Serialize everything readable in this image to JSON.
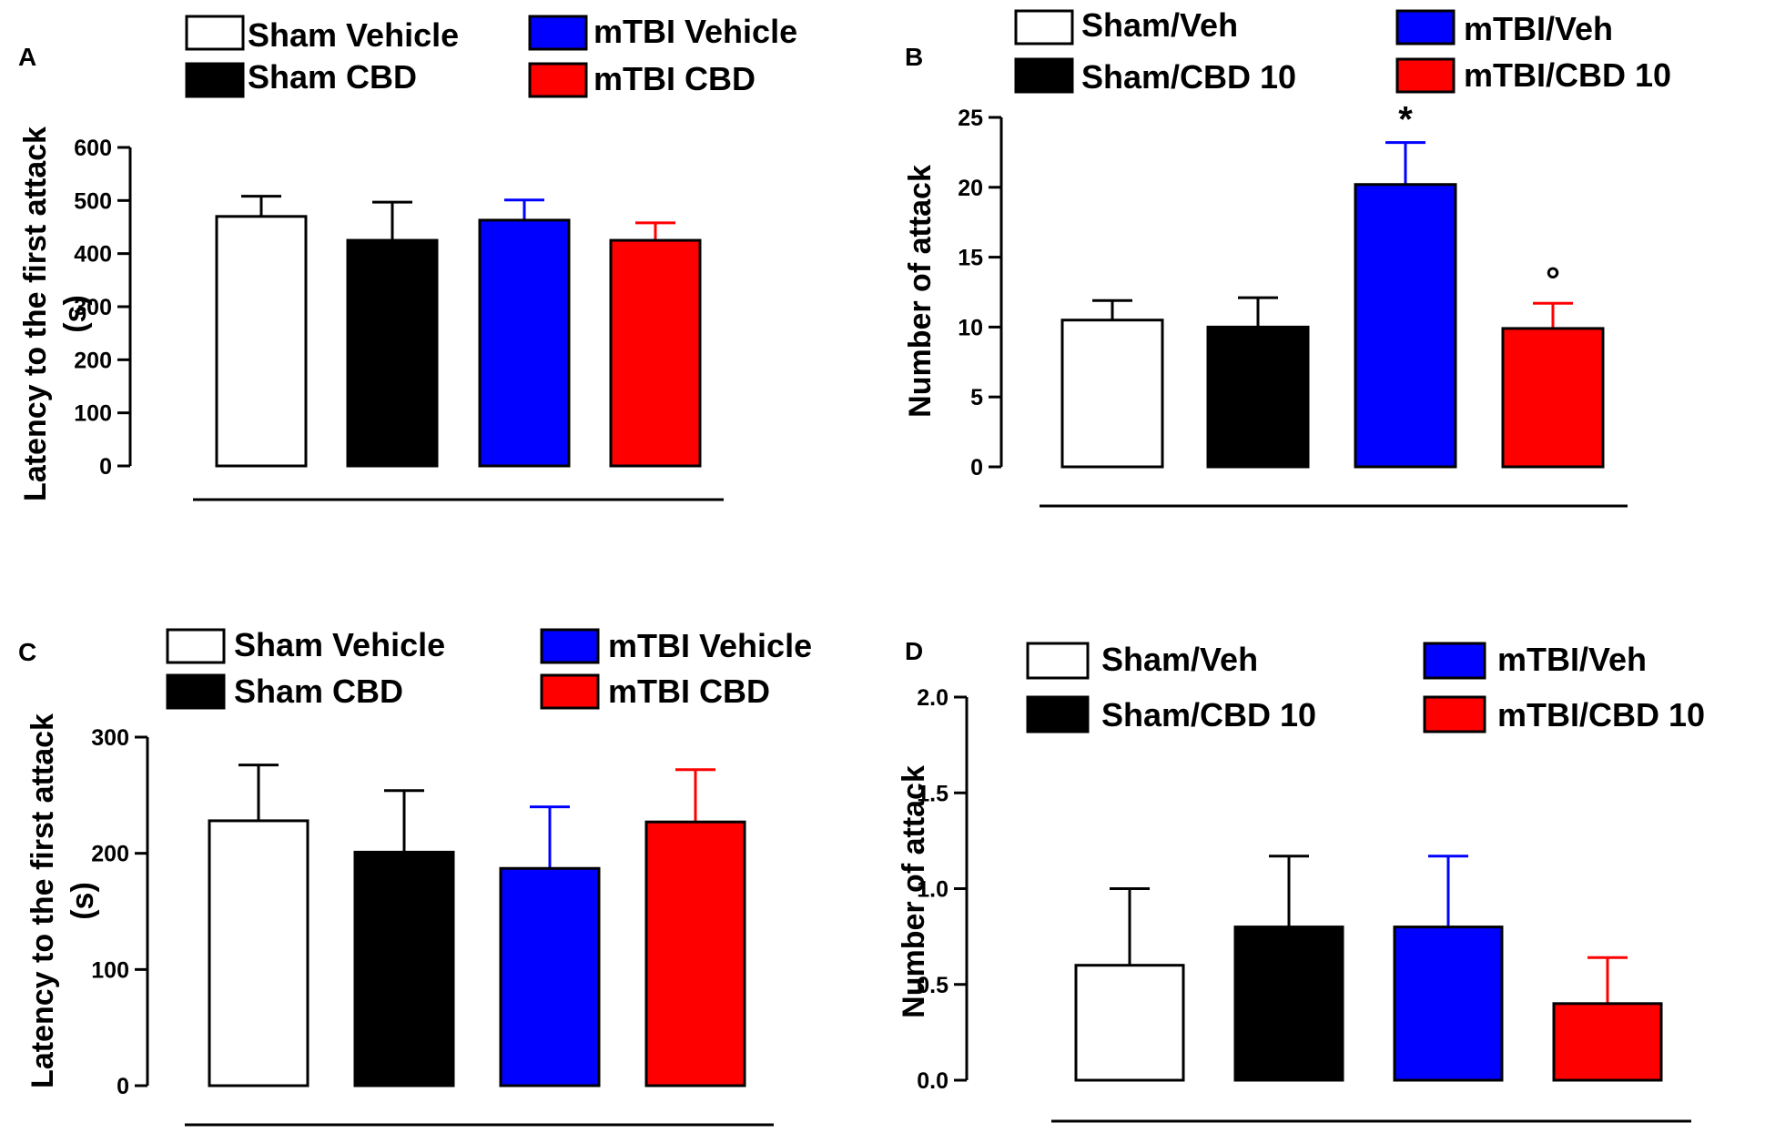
{
  "figure": {
    "groups": [
      {
        "name": "Sham Vehicle",
        "color": "#ffffff"
      },
      {
        "name": "Sham CBD",
        "color": "#000000"
      },
      {
        "name": "mTBI Vehicle",
        "color": "#0000ff"
      },
      {
        "name": "mTBI CBD",
        "color": "#ff0000"
      }
    ]
  },
  "chart_data": [
    {
      "panel": "A",
      "type": "bar",
      "ylabel": "Latency to the first attack (s)",
      "ylabel_lines": [
        "Latency to the first attack",
        "(s)"
      ],
      "ylim": [
        0,
        600
      ],
      "ticks": [
        0,
        100,
        200,
        300,
        400,
        500,
        600
      ],
      "tick_labels": [
        "0",
        "100",
        "200",
        "300",
        "400",
        "500",
        "600"
      ],
      "legend": [
        "Sham Vehicle",
        "Sham CBD",
        "mTBI Vehicle",
        "mTBI CBD"
      ],
      "colors": [
        "#ffffff",
        "#000000",
        "#0000ff",
        "#ff0000"
      ],
      "values": [
        470,
        425,
        463,
        425
      ],
      "errors": [
        38,
        72,
        38,
        33
      ],
      "annotations": [
        "",
        "",
        "",
        ""
      ]
    },
    {
      "panel": "B",
      "type": "bar",
      "ylabel": "Number of attack",
      "ylabel_lines": [
        "Number of attack"
      ],
      "ylim": [
        0,
        25
      ],
      "ticks": [
        0,
        5,
        10,
        15,
        20,
        25
      ],
      "tick_labels": [
        "0",
        "5",
        "10",
        "15",
        "20",
        "25"
      ],
      "legend": [
        "Sham/Veh",
        "Sham/CBD 10",
        "mTBI/Veh",
        "mTBI/CBD 10"
      ],
      "colors": [
        "#ffffff",
        "#000000",
        "#0000ff",
        "#ff0000"
      ],
      "values": [
        10.5,
        10.0,
        20.2,
        9.9
      ],
      "errors": [
        1.4,
        2.1,
        3.0,
        1.8
      ],
      "annotations": [
        "",
        "",
        "*",
        "°"
      ]
    },
    {
      "panel": "C",
      "type": "bar",
      "ylabel": "Latency to the first attack (s)",
      "ylabel_lines": [
        "Latency to the first attack",
        "(s)"
      ],
      "ylim": [
        0,
        300
      ],
      "ticks": [
        0,
        100,
        200,
        300
      ],
      "tick_labels": [
        "0",
        "100",
        "200",
        "300"
      ],
      "legend": [
        "Sham Vehicle",
        "Sham CBD",
        "mTBI Vehicle",
        "mTBI CBD"
      ],
      "colors": [
        "#ffffff",
        "#000000",
        "#0000ff",
        "#ff0000"
      ],
      "values": [
        228,
        201,
        187,
        227
      ],
      "errors": [
        48,
        53,
        53,
        45
      ],
      "annotations": [
        "",
        "",
        "",
        ""
      ]
    },
    {
      "panel": "D",
      "type": "bar",
      "ylabel": "Number of attack",
      "ylabel_lines": [
        "Number of attack"
      ],
      "ylim": [
        0,
        2.0
      ],
      "ticks": [
        0,
        0.5,
        1.0,
        1.5,
        2.0
      ],
      "tick_labels": [
        "0.0",
        "0.5",
        "1.0",
        "1.5",
        "2.0"
      ],
      "legend": [
        "Sham/Veh",
        "Sham/CBD 10",
        "mTBI/Veh",
        "mTBI/CBD 10"
      ],
      "colors": [
        "#ffffff",
        "#000000",
        "#0000ff",
        "#ff0000"
      ],
      "values": [
        0.6,
        0.8,
        0.8,
        0.4
      ],
      "errors": [
        0.4,
        0.37,
        0.37,
        0.24
      ],
      "annotations": [
        "",
        "",
        "",
        ""
      ]
    }
  ]
}
